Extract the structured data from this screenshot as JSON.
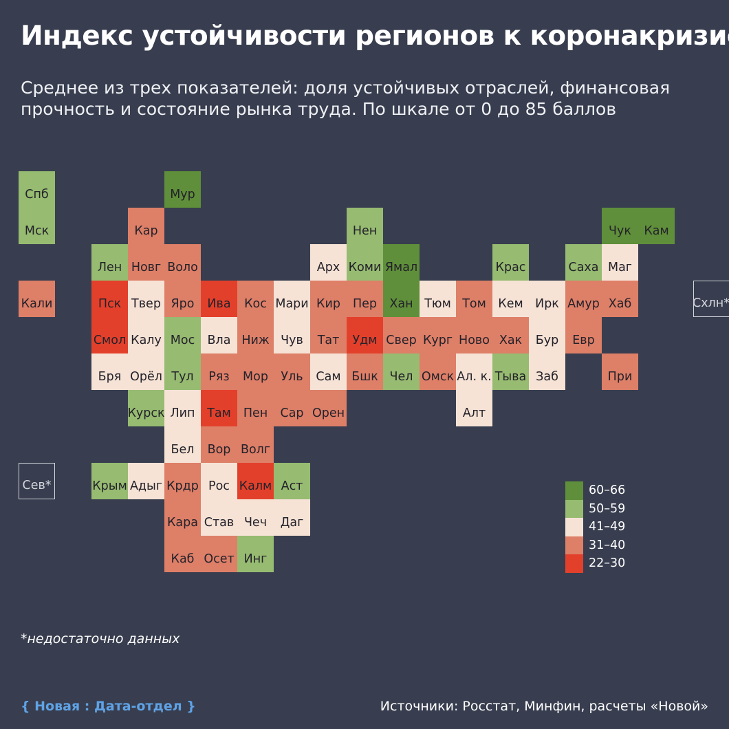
{
  "title": "Индекс устойчивости регионов к коронакризису",
  "subtitle": "Среднее из трех показателей: доля устойчивых отраслей, финансовая прочность и состояние рынка труда. По шкале от 0 до 85 баллов",
  "legend": [
    {
      "label": "60–66",
      "color": "#5f8f3a",
      "bin": "60-66"
    },
    {
      "label": "50–59",
      "color": "#96bb71",
      "bin": "50-59"
    },
    {
      "label": "41–49",
      "color": "#f6e3d6",
      "bin": "41-49"
    },
    {
      "label": "31–40",
      "color": "#de7f68",
      "bin": "31-40"
    },
    {
      "label": "22–30",
      "color": "#e3402c",
      "bin": "22-30"
    }
  ],
  "regions": [
    {
      "label": "Спб",
      "row": 0,
      "col": 0,
      "bin": "50-59"
    },
    {
      "label": "Мур",
      "row": 0,
      "col": 4,
      "bin": "60-66"
    },
    {
      "label": "Мск",
      "row": 1,
      "col": 0,
      "bin": "50-59"
    },
    {
      "label": "Кар",
      "row": 1,
      "col": 3,
      "bin": "31-40"
    },
    {
      "label": "Нен",
      "row": 1,
      "col": 9,
      "bin": "50-59"
    },
    {
      "label": "Чук",
      "row": 1,
      "col": 16,
      "bin": "60-66"
    },
    {
      "label": "Кам",
      "row": 1,
      "col": 17,
      "bin": "60-66"
    },
    {
      "label": "Лен",
      "row": 2,
      "col": 2,
      "bin": "50-59"
    },
    {
      "label": "Новг",
      "row": 2,
      "col": 3,
      "bin": "31-40"
    },
    {
      "label": "Воло",
      "row": 2,
      "col": 4,
      "bin": "31-40"
    },
    {
      "label": "Арх",
      "row": 2,
      "col": 8,
      "bin": "41-49"
    },
    {
      "label": "Коми",
      "row": 2,
      "col": 9,
      "bin": "50-59"
    },
    {
      "label": "Ямал",
      "row": 2,
      "col": 10,
      "bin": "60-66"
    },
    {
      "label": "Крас",
      "row": 2,
      "col": 13,
      "bin": "50-59"
    },
    {
      "label": "Саха",
      "row": 2,
      "col": 15,
      "bin": "50-59"
    },
    {
      "label": "Маг",
      "row": 2,
      "col": 16,
      "bin": "41-49"
    },
    {
      "label": "Кали",
      "row": 3,
      "col": 0,
      "bin": "31-40"
    },
    {
      "label": "Пск",
      "row": 3,
      "col": 2,
      "bin": "22-30"
    },
    {
      "label": "Твер",
      "row": 3,
      "col": 3,
      "bin": "41-49"
    },
    {
      "label": "Яро",
      "row": 3,
      "col": 4,
      "bin": "31-40"
    },
    {
      "label": "Ива",
      "row": 3,
      "col": 5,
      "bin": "22-30"
    },
    {
      "label": "Кос",
      "row": 3,
      "col": 6,
      "bin": "31-40"
    },
    {
      "label": "Мари",
      "row": 3,
      "col": 7,
      "bin": "41-49"
    },
    {
      "label": "Кир",
      "row": 3,
      "col": 8,
      "bin": "31-40"
    },
    {
      "label": "Пер",
      "row": 3,
      "col": 9,
      "bin": "31-40"
    },
    {
      "label": "Хан",
      "row": 3,
      "col": 10,
      "bin": "60-66"
    },
    {
      "label": "Тюм",
      "row": 3,
      "col": 11,
      "bin": "41-49"
    },
    {
      "label": "Том",
      "row": 3,
      "col": 12,
      "bin": "31-40"
    },
    {
      "label": "Кем",
      "row": 3,
      "col": 13,
      "bin": "41-49"
    },
    {
      "label": "Ирк",
      "row": 3,
      "col": 14,
      "bin": "41-49"
    },
    {
      "label": "Амур",
      "row": 3,
      "col": 15,
      "bin": "31-40"
    },
    {
      "label": "Хаб",
      "row": 3,
      "col": 16,
      "bin": "31-40"
    },
    {
      "label": "Схлн*",
      "row": 3,
      "col": 18.5,
      "nodata": true
    },
    {
      "label": "Смол",
      "row": 4,
      "col": 2,
      "bin": "22-30"
    },
    {
      "label": "Калу",
      "row": 4,
      "col": 3,
      "bin": "41-49"
    },
    {
      "label": "Мос",
      "row": 4,
      "col": 4,
      "bin": "50-59"
    },
    {
      "label": "Вла",
      "row": 4,
      "col": 5,
      "bin": "41-49"
    },
    {
      "label": "Ниж",
      "row": 4,
      "col": 6,
      "bin": "31-40"
    },
    {
      "label": "Чув",
      "row": 4,
      "col": 7,
      "bin": "41-49"
    },
    {
      "label": "Тат",
      "row": 4,
      "col": 8,
      "bin": "31-40"
    },
    {
      "label": "Удм",
      "row": 4,
      "col": 9,
      "bin": "22-30"
    },
    {
      "label": "Свер",
      "row": 4,
      "col": 10,
      "bin": "31-40"
    },
    {
      "label": "Кург",
      "row": 4,
      "col": 11,
      "bin": "31-40"
    },
    {
      "label": "Ново",
      "row": 4,
      "col": 12,
      "bin": "31-40"
    },
    {
      "label": "Хак",
      "row": 4,
      "col": 13,
      "bin": "31-40"
    },
    {
      "label": "Бур",
      "row": 4,
      "col": 14,
      "bin": "41-49"
    },
    {
      "label": "Евр",
      "row": 4,
      "col": 15,
      "bin": "31-40"
    },
    {
      "label": "Бря",
      "row": 5,
      "col": 2,
      "bin": "41-49"
    },
    {
      "label": "Орёл",
      "row": 5,
      "col": 3,
      "bin": "41-49"
    },
    {
      "label": "Тул",
      "row": 5,
      "col": 4,
      "bin": "50-59"
    },
    {
      "label": "Ряз",
      "row": 5,
      "col": 5,
      "bin": "31-40"
    },
    {
      "label": "Мор",
      "row": 5,
      "col": 6,
      "bin": "31-40"
    },
    {
      "label": "Уль",
      "row": 5,
      "col": 7,
      "bin": "31-40"
    },
    {
      "label": "Сам",
      "row": 5,
      "col": 8,
      "bin": "41-49"
    },
    {
      "label": "Бшк",
      "row": 5,
      "col": 9,
      "bin": "31-40"
    },
    {
      "label": "Чел",
      "row": 5,
      "col": 10,
      "bin": "50-59"
    },
    {
      "label": "Омск",
      "row": 5,
      "col": 11,
      "bin": "31-40"
    },
    {
      "label": "Ал. к.",
      "row": 5,
      "col": 12,
      "bin": "41-49"
    },
    {
      "label": "Тыва",
      "row": 5,
      "col": 13,
      "bin": "50-59"
    },
    {
      "label": "Заб",
      "row": 5,
      "col": 14,
      "bin": "41-49"
    },
    {
      "label": "При",
      "row": 5,
      "col": 16,
      "bin": "31-40"
    },
    {
      "label": "Курск",
      "row": 6,
      "col": 3,
      "bin": "50-59"
    },
    {
      "label": "Лип",
      "row": 6,
      "col": 4,
      "bin": "41-49"
    },
    {
      "label": "Там",
      "row": 6,
      "col": 5,
      "bin": "22-30"
    },
    {
      "label": "Пен",
      "row": 6,
      "col": 6,
      "bin": "31-40"
    },
    {
      "label": "Сар",
      "row": 6,
      "col": 7,
      "bin": "31-40"
    },
    {
      "label": "Орен",
      "row": 6,
      "col": 8,
      "bin": "31-40"
    },
    {
      "label": "Алт",
      "row": 6,
      "col": 12,
      "bin": "41-49"
    },
    {
      "label": "Бел",
      "row": 7,
      "col": 4,
      "bin": "41-49"
    },
    {
      "label": "Вор",
      "row": 7,
      "col": 5,
      "bin": "31-40"
    },
    {
      "label": "Волг",
      "row": 7,
      "col": 6,
      "bin": "31-40"
    },
    {
      "label": "Сев*",
      "row": 8,
      "col": 0,
      "nodata": true
    },
    {
      "label": "Крым",
      "row": 8,
      "col": 2,
      "bin": "50-59"
    },
    {
      "label": "Адыг",
      "row": 8,
      "col": 3,
      "bin": "41-49"
    },
    {
      "label": "Крдр",
      "row": 8,
      "col": 4,
      "bin": "31-40"
    },
    {
      "label": "Рос",
      "row": 8,
      "col": 5,
      "bin": "41-49"
    },
    {
      "label": "Калм",
      "row": 8,
      "col": 6,
      "bin": "22-30"
    },
    {
      "label": "Аст",
      "row": 8,
      "col": 7,
      "bin": "50-59"
    },
    {
      "label": "Кара",
      "row": 9,
      "col": 4,
      "bin": "31-40"
    },
    {
      "label": "Став",
      "row": 9,
      "col": 5,
      "bin": "41-49"
    },
    {
      "label": "Чеч",
      "row": 9,
      "col": 6,
      "bin": "41-49"
    },
    {
      "label": "Даг",
      "row": 9,
      "col": 7,
      "bin": "41-49"
    },
    {
      "label": "Каб",
      "row": 10,
      "col": 4,
      "bin": "31-40"
    },
    {
      "label": "Осет",
      "row": 10,
      "col": 5,
      "bin": "31-40"
    },
    {
      "label": "Инг",
      "row": 10,
      "col": 6,
      "bin": "50-59"
    }
  ],
  "footnote": "*недостаточно данных",
  "brand": "{ Новая : Дата-отдел }",
  "sources": "Источники: Росстат, Минфин, расчеты «Новой»"
}
